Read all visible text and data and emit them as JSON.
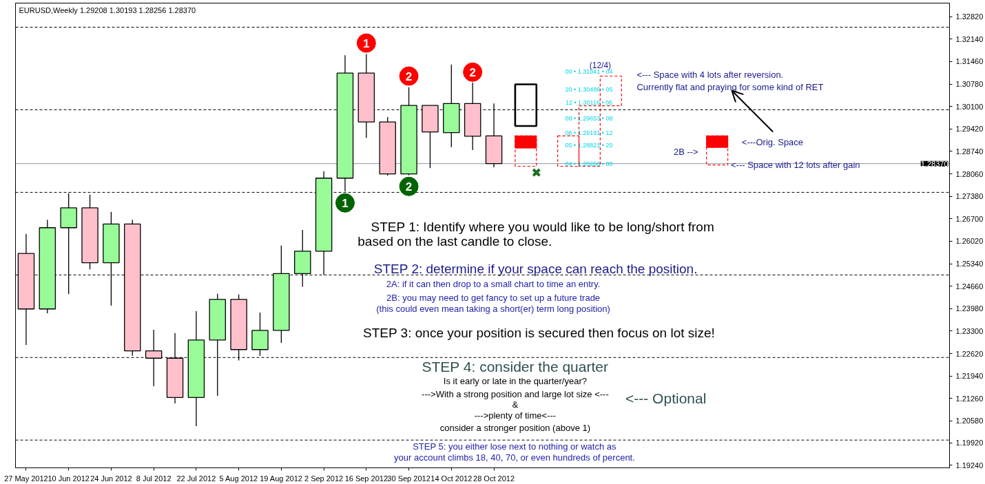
{
  "chart_data": {
    "type": "candlestick",
    "title": "EURUSD,Weekly  1.29208 1.30193 1.28256 1.28370",
    "xlim": [
      "2012-05-23T12:00",
      "2013-03-27"
    ],
    "ylim": [
      1.1916,
      1.3323
    ],
    "xticks": [
      {
        "value": "2012-05-27",
        "label": "27 May 2012"
      },
      {
        "value": "2012-06-10",
        "label": "10 Jun 2012"
      },
      {
        "value": "2012-06-24",
        "label": "24 Jun 2012"
      },
      {
        "value": "2012-07-08",
        "label": "8 Jul 2012"
      },
      {
        "value": "2012-07-22",
        "label": "22 Jul 2012"
      },
      {
        "value": "2012-08-05",
        "label": "5 Aug 2012"
      },
      {
        "value": "2012-08-19",
        "label": "19 Aug 2012"
      },
      {
        "value": "2012-09-02",
        "label": "2 Sep 2012"
      },
      {
        "value": "2012-09-16",
        "label": "16 Sep 2012"
      },
      {
        "value": "2012-09-30",
        "label": "30 Sep 2012"
      },
      {
        "value": "2012-10-14",
        "label": "14 Oct 2012"
      },
      {
        "value": "2012-10-28",
        "label": "28 Oct 2012"
      }
    ],
    "yticks": [
      {
        "value": 1.3282,
        "label": "1.32820"
      },
      {
        "value": 1.3214,
        "label": "1.32140"
      },
      {
        "value": 1.3146,
        "label": "1.31460"
      },
      {
        "value": 1.3078,
        "label": "1.30780"
      },
      {
        "value": 1.301,
        "label": "1.30100"
      },
      {
        "value": 1.2942,
        "label": "1.29420"
      },
      {
        "value": 1.2874,
        "label": "1.28740"
      },
      {
        "value": 1.2806,
        "label": "1.28060"
      },
      {
        "value": 1.2738,
        "label": "1.27380"
      },
      {
        "value": 1.267,
        "label": "1.26700"
      },
      {
        "value": 1.2602,
        "label": "1.26020"
      },
      {
        "value": 1.2534,
        "label": "1.25340"
      },
      {
        "value": 1.2466,
        "label": "1.24660"
      },
      {
        "value": 1.2398,
        "label": "1.23980"
      },
      {
        "value": 1.233,
        "label": "1.23300"
      },
      {
        "value": 1.2262,
        "label": "1.22620"
      },
      {
        "value": 1.2194,
        "label": "1.21940"
      },
      {
        "value": 1.2126,
        "label": "1.21260"
      },
      {
        "value": 1.2058,
        "label": "1.20580"
      },
      {
        "value": 1.1992,
        "label": "1.19920"
      },
      {
        "value": 1.1924,
        "label": "1.19240"
      }
    ],
    "series": [
      {
        "x": [
          "2012-05-27",
          "2012-06-03",
          "2012-06-10",
          "2012-06-17",
          "2012-06-24",
          "2012-07-01",
          "2012-07-08",
          "2012-07-15",
          "2012-07-22",
          "2012-07-29",
          "2012-08-05",
          "2012-08-12",
          "2012-08-19",
          "2012-08-26",
          "2012-09-02",
          "2012-09-09",
          "2012-09-16",
          "2012-09-23",
          "2012-09-30",
          "2012-10-07",
          "2012-10-14",
          "2012-10-21",
          "2012-10-28"
        ],
        "ohlc": [
          [
            1.2565,
            1.2624,
            1.2288,
            1.2397
          ],
          [
            1.2397,
            1.2667,
            1.2384,
            1.2643
          ],
          [
            1.2643,
            1.2747,
            1.2442,
            1.2703
          ],
          [
            1.2703,
            1.2743,
            1.2517,
            1.2537
          ],
          [
            1.2537,
            1.2691,
            1.2407,
            1.2654
          ],
          [
            1.2654,
            1.2667,
            1.2255,
            1.227
          ],
          [
            1.227,
            1.2334,
            1.2163,
            1.2248
          ],
          [
            1.2248,
            1.2324,
            1.2111,
            1.2129
          ],
          [
            1.2129,
            1.239,
            1.2042,
            1.2303
          ],
          [
            1.2303,
            1.2443,
            1.2134,
            1.2426
          ],
          [
            1.2426,
            1.2441,
            1.2241,
            1.2274
          ],
          [
            1.2274,
            1.2386,
            1.2255,
            1.2332
          ],
          [
            1.2332,
            1.2589,
            1.2294,
            1.2504
          ],
          [
            1.2504,
            1.2636,
            1.2464,
            1.2572
          ],
          [
            1.2572,
            1.2814,
            1.25,
            1.2793
          ],
          [
            1.2793,
            1.3165,
            1.2753,
            1.3111
          ],
          [
            1.3111,
            1.3169,
            1.2915,
            1.2963
          ],
          [
            1.2963,
            1.2978,
            1.2801,
            1.2806
          ],
          [
            1.2806,
            1.3068,
            1.2802,
            1.3013
          ],
          [
            1.3013,
            1.3013,
            1.2823,
            1.2933
          ],
          [
            1.2931,
            1.3137,
            1.2887,
            1.3019
          ],
          [
            1.3019,
            1.3082,
            1.2878,
            1.292
          ],
          [
            1.29208,
            1.30193,
            1.28256,
            1.2837
          ]
        ],
        "colors": [
          "#ffc0cb",
          "#98fb98",
          "#98fb98",
          "#ffc0cb",
          "#98fb98",
          "#ffc0cb",
          "#ffc0cb",
          "#ffc0cb",
          "#98fb98",
          "#98fb98",
          "#ffc0cb",
          "#98fb98",
          "#98fb98",
          "#98fb98",
          "#98fb98",
          "#98fb98",
          "#ffc0cb",
          "#ffc0cb",
          "#98fb98",
          "#ffc0cb",
          "#98fb98",
          "#ffc0cb",
          "#ffc0cb"
        ]
      },
      {
        "type": "scatter",
        "marker": "circle",
        "color": "#ff0000",
        "x": [
          "2012-09-16",
          "2012-09-30",
          "2012-10-21"
        ],
        "values": [
          1.3202,
          1.3102,
          1.3114
        ]
      },
      {
        "type": "scatter",
        "marker": "circle",
        "color": "#006400",
        "x": [
          "2012-09-09",
          "2012-09-30"
        ],
        "values": [
          1.2718,
          1.2768
        ]
      },
      {
        "type": "scatter",
        "marker": "cross",
        "color": "#1e6e1e",
        "x": [
          "2012-11-11"
        ],
        "values": [
          1.281
        ]
      },
      {
        "type": "bar",
        "color": "#000000",
        "line_style": "solid",
        "x": [
          "2012-11-07T12:00"
        ],
        "base": [
          1.2951
        ],
        "values": [
          0.0126
        ]
      },
      {
        "type": "bar",
        "color": "#ff0000",
        "line_style": "dashed",
        "x": [
          "2012-11-07T12:00",
          "2012-11-21T12:00",
          "2012-11-28T12:00",
          "2012-12-05T12:00",
          "2013-01-09T12:00"
        ],
        "base": [
          1.2829,
          1.2829,
          1.2829,
          1.3012,
          1.2833
        ],
        "values": [
          0.0092,
          0.0092,
          0.0183,
          0.009,
          0.0088
        ]
      },
      {
        "type": "bar",
        "color": "#ff0000",
        "x": [
          "2012-11-07T12:00",
          "2013-01-09T12:00"
        ],
        "base": [
          1.2884,
          1.2886
        ],
        "values": [
          0.0037,
          0.0035
        ]
      }
    ],
    "ref_lines": [
      {
        "axis": "y",
        "value": 1.325,
        "color": "#000000",
        "line_style": "dashed"
      },
      {
        "axis": "y",
        "value": 1.3,
        "color": "#000000",
        "line_style": "dashed"
      },
      {
        "axis": "y",
        "value": 1.275,
        "color": "#000000",
        "line_style": "dashed"
      },
      {
        "axis": "y",
        "value": 1.25,
        "color": "#000000",
        "line_style": "dashed"
      },
      {
        "axis": "y",
        "value": 1.225,
        "color": "#000000",
        "line_style": "dashed"
      },
      {
        "axis": "y",
        "value": 1.2,
        "color": "#000000",
        "line_style": "dashed"
      },
      {
        "axis": "y",
        "value": 1.2837,
        "color": "#8c96a0",
        "line_style": "solid",
        "label": "1.28370"
      }
    ],
    "annotations": [
      {
        "text": "1",
        "x": "2012-09-16",
        "y": 1.3202
      },
      {
        "text": "2",
        "x": "2012-09-30",
        "y": 1.3102
      },
      {
        "text": "2",
        "x": "2012-10-21",
        "y": 1.3114
      },
      {
        "text": "1",
        "x": "2012-09-09",
        "y": 1.2718
      },
      {
        "text": "2",
        "x": "2012-09-30",
        "y": 1.2768
      },
      {
        "text": "<--- Space with 12 lots after gain",
        "x": "2013-01-14",
        "y": 1.2833
      },
      "(12/4)",
      "00 • 1.31041 • 04",
      "20 • 1.30486 • 05",
      "12 • 1.30116 • 06",
      "08 • 1.29653 • 08",
      "06 • 1.29191 • 12",
      "05 • 1.28821 • 20",
      "04 • 1.28266 • 00",
      "<--- Space with 4 lots after reversion.\nCurrently flat and praying for some kind of RET",
      "2B -->",
      "<---Orig. Space",
      "STEP 1: Identify where you would like to be long/short from",
      "based on the last candle to close.",
      "STEP 2: determine if your space can reach the position.",
      "2A: if it can then drop to a small chart to time an entry.",
      "2B: you may need to get fancy to set up a future trade",
      "(this could even mean taking a short(er) term long position)",
      "STEP 3: once your position is secured then focus on lot size!",
      "STEP 4: consider the quarter",
      "Is it early or late in the quarter/year?",
      "--->With a strong position and large lot size <---",
      "&",
      "--->plenty of time<---",
      "consider a stronger position (above 1)",
      "<--- Optional",
      "STEP 5: you either lose next to nothing or watch as",
      "your account climbs 18, 40, 70, or even hundreds of percent."
    ]
  }
}
